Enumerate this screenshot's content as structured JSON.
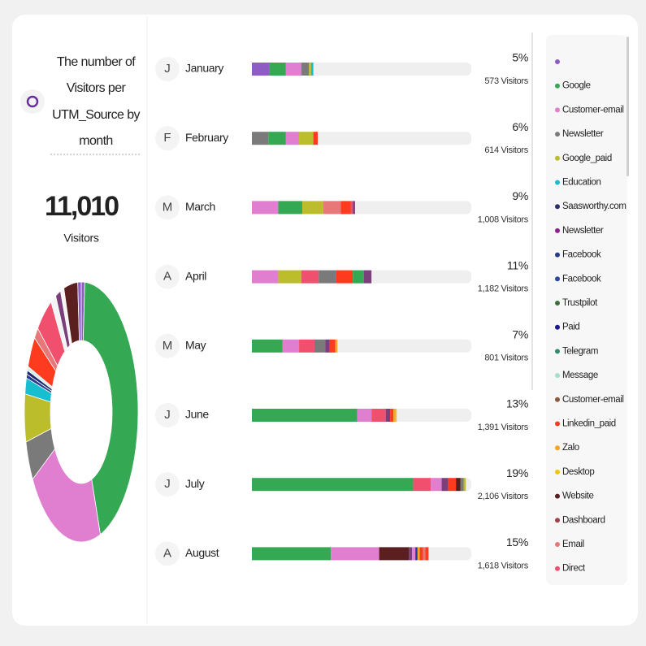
{
  "header": {
    "title": [
      "The number of",
      "Visitors per",
      "UTM_Source by",
      "month"
    ],
    "total": "11,010",
    "total_label": "Visitors"
  },
  "donut": {
    "segments": [
      {
        "color": "#8e5cc4",
        "value": 1
      },
      {
        "color": "#34a853",
        "value": 44
      },
      {
        "color": "#e07fcf",
        "value": 22
      },
      {
        "color": "#7a7a7a",
        "value": 5
      },
      {
        "color": "#bcbd2a",
        "value": 6
      },
      {
        "color": "#17becf",
        "value": 2
      },
      {
        "color": "#2b3a8f",
        "value": 0.5
      },
      {
        "color": "#1f2a6e",
        "value": 0.5
      },
      {
        "color": "#d8ece8",
        "value": 0.5
      },
      {
        "color": "#ff3b1f",
        "value": 4
      },
      {
        "color": "#e8777a",
        "value": 1.5
      },
      {
        "color": "#f0506e",
        "value": 5
      },
      {
        "color": "#f4f4f4",
        "value": 1.5
      },
      {
        "color": "#7b3f7b",
        "value": 1.5
      },
      {
        "color": "#f4f4f4",
        "value": 1
      },
      {
        "color": "#5b1f1f",
        "value": 4
      },
      {
        "color": "#8e5cc4",
        "value": 1
      }
    ]
  },
  "months": {
    "xlim": [
      0,
      20
    ],
    "rows": [
      {
        "initial": "J",
        "name": "January",
        "percent": "5%",
        "visitors": "573 Visitors",
        "segments": [
          {
            "color": "#8e5cc4",
            "value": 1.6
          },
          {
            "color": "#34a853",
            "value": 1.5
          },
          {
            "color": "#e07fcf",
            "value": 1.4
          },
          {
            "color": "#7a7a7a",
            "value": 0.7
          },
          {
            "color": "#bcbd2a",
            "value": 0.2
          },
          {
            "color": "#17becf",
            "value": 0.2
          }
        ]
      },
      {
        "initial": "F",
        "name": "February",
        "percent": "6%",
        "visitors": "614 Visitors",
        "segments": [
          {
            "color": "#7a7a7a",
            "value": 1.5
          },
          {
            "color": "#34a853",
            "value": 1.6
          },
          {
            "color": "#e07fcf",
            "value": 1.2
          },
          {
            "color": "#bcbd2a",
            "value": 1.3
          },
          {
            "color": "#ff3b1f",
            "value": 0.4
          }
        ]
      },
      {
        "initial": "M",
        "name": "March",
        "percent": "9%",
        "visitors": "1,008 Visitors",
        "segments": [
          {
            "color": "#e07fcf",
            "value": 2.4
          },
          {
            "color": "#34a853",
            "value": 2.2
          },
          {
            "color": "#bcbd2a",
            "value": 1.9
          },
          {
            "color": "#e8777a",
            "value": 1.6
          },
          {
            "color": "#ff3b1f",
            "value": 0.9
          },
          {
            "color": "#f0506e",
            "value": 0.2
          },
          {
            "color": "#7b3f7b",
            "value": 0.2
          }
        ]
      },
      {
        "initial": "A",
        "name": "April",
        "percent": "11%",
        "visitors": "1,182 Visitors",
        "segments": [
          {
            "color": "#e07fcf",
            "value": 2.4
          },
          {
            "color": "#bcbd2a",
            "value": 2.1
          },
          {
            "color": "#f0506e",
            "value": 1.6
          },
          {
            "color": "#7a7a7a",
            "value": 1.6
          },
          {
            "color": "#ff3b1f",
            "value": 1.5
          },
          {
            "color": "#34a853",
            "value": 1.0
          },
          {
            "color": "#7b3f7b",
            "value": 0.7
          }
        ]
      },
      {
        "initial": "M",
        "name": "May",
        "percent": "7%",
        "visitors": "801 Visitors",
        "segments": [
          {
            "color": "#34a853",
            "value": 2.8
          },
          {
            "color": "#e07fcf",
            "value": 1.5
          },
          {
            "color": "#f0506e",
            "value": 1.4
          },
          {
            "color": "#7a7a7a",
            "value": 1.0
          },
          {
            "color": "#7b3f7b",
            "value": 0.4
          },
          {
            "color": "#ff3b1f",
            "value": 0.5
          },
          {
            "color": "#f5a623",
            "value": 0.2
          }
        ]
      },
      {
        "initial": "J",
        "name": "June",
        "percent": "13%",
        "visitors": "1,391 Visitors",
        "segments": [
          {
            "color": "#34a853",
            "value": 9.6
          },
          {
            "color": "#e07fcf",
            "value": 1.3
          },
          {
            "color": "#f0506e",
            "value": 1.3
          },
          {
            "color": "#7b3f7b",
            "value": 0.4
          },
          {
            "color": "#ff3b1f",
            "value": 0.3
          },
          {
            "color": "#f5a623",
            "value": 0.2
          },
          {
            "color": "#f1c40f",
            "value": 0.1
          }
        ]
      },
      {
        "initial": "J",
        "name": "July",
        "percent": "19%",
        "visitors": "2,106 Visitors",
        "segments": [
          {
            "color": "#34a853",
            "value": 14.7
          },
          {
            "color": "#f0506e",
            "value": 1.6
          },
          {
            "color": "#e07fcf",
            "value": 1.0
          },
          {
            "color": "#7b3f7b",
            "value": 0.6
          },
          {
            "color": "#ff3b1f",
            "value": 0.7
          },
          {
            "color": "#5b1f1f",
            "value": 0.4
          },
          {
            "color": "#7a7a7a",
            "value": 0.3
          },
          {
            "color": "#bcbd2a",
            "value": 0.2
          }
        ]
      },
      {
        "initial": "A",
        "name": "August",
        "percent": "15%",
        "visitors": "1,618 Visitors",
        "segments": [
          {
            "color": "#34a853",
            "value": 7.2
          },
          {
            "color": "#e07fcf",
            "value": 4.4
          },
          {
            "color": "#5b1f1f",
            "value": 2.7
          },
          {
            "color": "#7b3f7b",
            "value": 0.3
          },
          {
            "color": "#e07fcf",
            "value": 0.3
          },
          {
            "color": "#2b3a8f",
            "value": 0.2
          },
          {
            "color": "#f5a623",
            "value": 0.2
          },
          {
            "color": "#ff3b1f",
            "value": 0.3
          },
          {
            "color": "#e8777a",
            "value": 0.2
          },
          {
            "color": "#ff3b1f",
            "value": 0.3
          }
        ]
      }
    ]
  },
  "legend": [
    {
      "label": null,
      "color": "#8e5cc4"
    },
    {
      "label": "Google",
      "color": "#34a853"
    },
    {
      "label": "Customer-email",
      "color": "#e07fcf"
    },
    {
      "label": "Newsletter",
      "color": "#7a7a7a"
    },
    {
      "label": "Google_paid",
      "color": "#bcbd2a"
    },
    {
      "label": "Education",
      "color": "#17becf"
    },
    {
      "label": "Saasworthy.com",
      "color": "#2b2f6e"
    },
    {
      "label": "Newsletter",
      "color": "#8e1f8e"
    },
    {
      "label": "Facebook",
      "color": "#2b3a8f"
    },
    {
      "label": "Facebook",
      "color": "#2b4a9f"
    },
    {
      "label": "Trustpilot",
      "color": "#3f6f3f"
    },
    {
      "label": "Paid",
      "color": "#1a1a8f"
    },
    {
      "label": "Telegram",
      "color": "#2e8b6e"
    },
    {
      "label": "Message",
      "color": "#9fe0d0"
    },
    {
      "label": "Customer-email",
      "color": "#8b5a3c"
    },
    {
      "label": "Linkedin_paid",
      "color": "#ff3b1f"
    },
    {
      "label": "Zalo",
      "color": "#f5a623"
    },
    {
      "label": "Desktop",
      "color": "#f1c40f"
    },
    {
      "label": "Website",
      "color": "#5b1f1f"
    },
    {
      "label": "Dashboard",
      "color": "#a0424a"
    },
    {
      "label": "Email",
      "color": "#e8777a"
    },
    {
      "label": "Direct",
      "color": "#f0506e"
    }
  ]
}
